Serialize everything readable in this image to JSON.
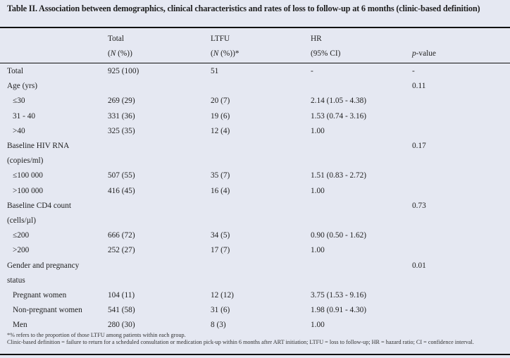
{
  "title": "Table II. Association between demographics, clinical characteristics and rates of loss to follow-up at 6 months (clinic-based definition)",
  "header": {
    "row1": [
      "",
      "Total",
      "LTFU",
      "HR",
      ""
    ],
    "row2": [
      "",
      "(N (%))",
      "(N (%))*",
      "(95% CI)",
      "p-value"
    ]
  },
  "rows": [
    {
      "label": "Total",
      "total": "925 (100)",
      "ltfu": "51",
      "hr": "-",
      "p": "-",
      "indent": false
    },
    {
      "label": "Age (yrs)",
      "total": "",
      "ltfu": "",
      "hr": "",
      "p": "0.11",
      "indent": false
    },
    {
      "label": "≤30",
      "total": "269 (29)",
      "ltfu": "20 (7)",
      "hr": "2.14 (1.05 - 4.38)",
      "p": "",
      "indent": true
    },
    {
      "label": "31 - 40",
      "total": "331 (36)",
      "ltfu": "19 (6)",
      "hr": "1.53 (0.74 - 3.16)",
      "p": "",
      "indent": true
    },
    {
      "label": ">40",
      "total": "325 (35)",
      "ltfu": "12 (4)",
      "hr": " 1.00",
      "p": "",
      "indent": true
    },
    {
      "label": "Baseline HIV RNA",
      "total": "",
      "ltfu": "",
      "hr": "",
      "p": "0.17",
      "indent": false
    },
    {
      "label": "(copies/ml)",
      "total": "",
      "ltfu": "",
      "hr": "",
      "p": "",
      "indent": false
    },
    {
      "label": "≤100 000",
      "total": "507 (55)",
      "ltfu": "35 (7)",
      "hr": "1.51 (0.83 - 2.72)",
      "p": "",
      "indent": true
    },
    {
      "label": ">100 000",
      "total": "416 (45)",
      "ltfu": "16 (4)",
      "hr": " 1.00",
      "p": "",
      "indent": true
    },
    {
      "label": "Baseline CD4 count",
      "total": "",
      "ltfu": "",
      "hr": "",
      "p": "0.73",
      "indent": false
    },
    {
      "label": "(cells/µl)",
      "total": "",
      "ltfu": "",
      "hr": "",
      "p": "",
      "indent": false
    },
    {
      "label": "≤200",
      "total": "666 (72)",
      "ltfu": "34 (5)",
      "hr": "0.90 (0.50 - 1.62)",
      "p": "",
      "indent": true
    },
    {
      "label": ">200",
      "total": "252 (27)",
      "ltfu": "17 (7)",
      "hr": " 1.00",
      "p": "",
      "indent": true
    },
    {
      "label": "Gender and pregnancy",
      "total": "",
      "ltfu": "",
      "hr": "",
      "p": "0.01",
      "indent": false
    },
    {
      "label": "status",
      "total": "",
      "ltfu": "",
      "hr": "",
      "p": "",
      "indent": false
    },
    {
      "label": "Pregnant women",
      "total": "104 (11)",
      "ltfu": "12 (12)",
      "hr": "3.75 (1.53 - 9.16)",
      "p": "",
      "indent": true
    },
    {
      "label": "Non-pregnant women",
      "total": "541 (58)",
      "ltfu": "31 (6)",
      "hr": "1.98 (0.91 - 4.30)",
      "p": "",
      "indent": true
    },
    {
      "label": "Men",
      "total": "280 (30)",
      "ltfu": "8 (3)",
      "hr": " 1.00",
      "p": "",
      "indent": true
    }
  ],
  "footnotes": [
    "*% refers to the proportion of those LTFU among patients within each group.",
    "Clinic-based definition = failure to return for a scheduled consultation or medication pick-up within 6 months after ART initiation; LTFU = loss to follow-up; HR = hazard ratio; CI = confidence interval."
  ]
}
